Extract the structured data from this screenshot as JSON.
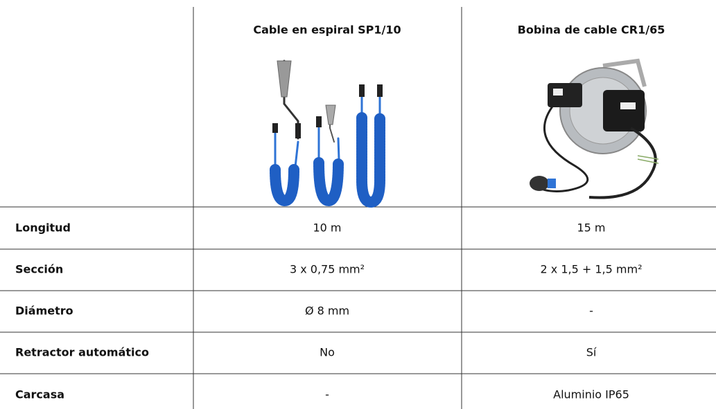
{
  "header": {
    "columns": [
      "Cable en espiral SP1/10",
      "Bobina de cable CR1/65"
    ]
  },
  "table": {
    "rows": [
      [
        "Longitud",
        "10 m",
        "15 m"
      ],
      [
        "Sección",
        "3 x 0,75 mm²",
        "2 x 1,5 + 1,5 mm²"
      ],
      [
        "Diámetro",
        "Ø 8 mm",
        "-"
      ],
      [
        "Retractor automático",
        "No",
        "Sí"
      ],
      [
        "Carcasa",
        "-",
        "Aluminio IP65"
      ]
    ]
  }
}
